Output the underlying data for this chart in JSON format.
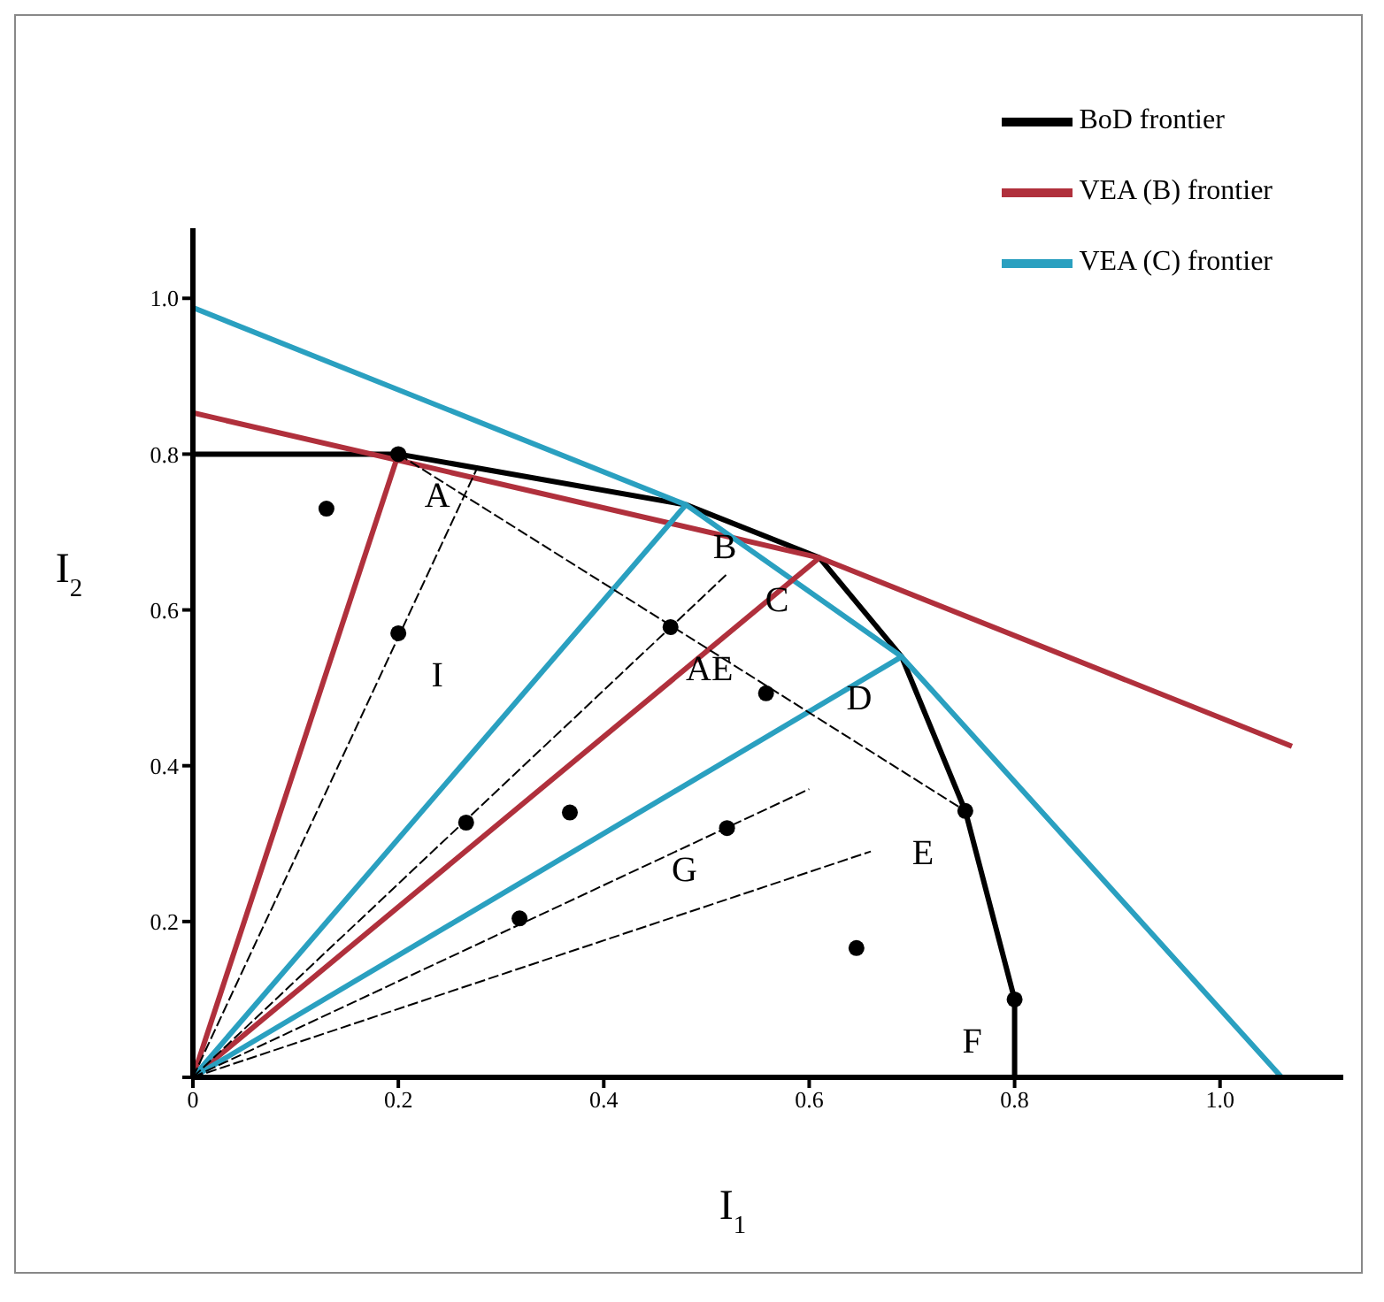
{
  "chart_data": {
    "type": "line",
    "xlabel": "I$_{1}$",
    "ylabel": "I$_{2}$",
    "xlim": [
      0,
      1.12
    ],
    "ylim": [
      0,
      1.09
    ],
    "xticks": [
      0,
      0.2,
      0.4,
      0.6,
      0.8,
      {
        "value": 1,
        "label": "1.0"
      }
    ],
    "yticks": [
      {
        "value": 0,
        "label": null
      },
      0.2,
      0.4,
      0.6,
      0.8,
      {
        "value": 1,
        "label": "1.0"
      }
    ],
    "grid": false,
    "legend": "top right",
    "series": [
      {
        "name": "BoD frontier",
        "color": "#000000",
        "line_style": "solid",
        "x": [
          0,
          0.2,
          0.48,
          0.61,
          0.69,
          0.752,
          0.8,
          0.8
        ],
        "values": [
          0.8,
          0.8,
          0.735,
          0.667,
          0.54,
          0.342,
          0.1,
          0
        ]
      },
      {
        "name": "VEA (B) frontier",
        "color": "#b0303c",
        "line_style": "solid",
        "x": [
          0,
          0.61,
          1.07
        ],
        "values": [
          0.853,
          0.667,
          0.425
        ]
      },
      {
        "name": "VEA (C) frontier",
        "color": "#2aa0c0",
        "line_style": "solid",
        "x": [
          0,
          0.48,
          0.69,
          1.06
        ],
        "values": [
          0.988,
          0.735,
          0.54,
          0
        ]
      },
      {
        "color": "#b0303c",
        "line_style": "solid",
        "x": [
          0,
          0.2
        ],
        "values": [
          0,
          0.8
        ]
      },
      {
        "color": "#b0303c",
        "line_style": "solid",
        "x": [
          0,
          0.61
        ],
        "values": [
          0,
          0.667
        ]
      },
      {
        "color": "#2aa0c0",
        "line_style": "solid",
        "x": [
          0,
          0.48
        ],
        "values": [
          0,
          0.735
        ]
      },
      {
        "color": "#2aa0c0",
        "line_style": "solid",
        "x": [
          0,
          0.69
        ],
        "values": [
          0,
          0.54
        ]
      },
      {
        "color": "#000000",
        "line_style": "dashed",
        "x": [
          0,
          0.276
        ],
        "values": [
          0,
          0.78
        ]
      },
      {
        "color": "#000000",
        "line_style": "dashed",
        "x": [
          0,
          0.52
        ],
        "values": [
          0,
          0.646
        ]
      },
      {
        "color": "#000000",
        "line_style": "dashed",
        "x": [
          0.2,
          0.752
        ],
        "values": [
          0.8,
          0.342
        ]
      },
      {
        "color": "#000000",
        "line_style": "dashed",
        "x": [
          0,
          0.6
        ],
        "values": [
          0,
          0.37
        ]
      },
      {
        "color": "#000000",
        "line_style": "dashed",
        "x": [
          0,
          0.66
        ],
        "values": [
          0,
          0.29
        ]
      },
      {
        "type": "scatter",
        "color": "#000000",
        "marker": "circle",
        "x": [
          0.13,
          0.2,
          0.465,
          0.558,
          0.266,
          0.367,
          0.52,
          0.318,
          0.646,
          0.2,
          0.752,
          0.8
        ],
        "values": [
          0.73,
          0.57,
          0.578,
          0.493,
          0.327,
          0.34,
          0.32,
          0.204,
          0.166,
          0.8,
          0.342,
          0.1
        ]
      }
    ],
    "annotations": [
      {
        "text": "A",
        "x": 0.2,
        "y": 0.8
      },
      {
        "text": "B",
        "x": 0.48,
        "y": 0.735
      },
      {
        "text": "C",
        "x": 0.61,
        "y": 0.667
      },
      {
        "text": "D",
        "x": 0.69,
        "y": 0.54
      },
      {
        "text": "E",
        "x": 0.752,
        "y": 0.342
      },
      {
        "text": "F",
        "x": 0.8,
        "y": 0.1
      },
      {
        "text": "I",
        "x": 0.2,
        "y": 0.57
      },
      {
        "text": "AE",
        "x": 0.465,
        "y": 0.578
      },
      {
        "text": "G",
        "x": 0.52,
        "y": 0.32
      }
    ]
  }
}
